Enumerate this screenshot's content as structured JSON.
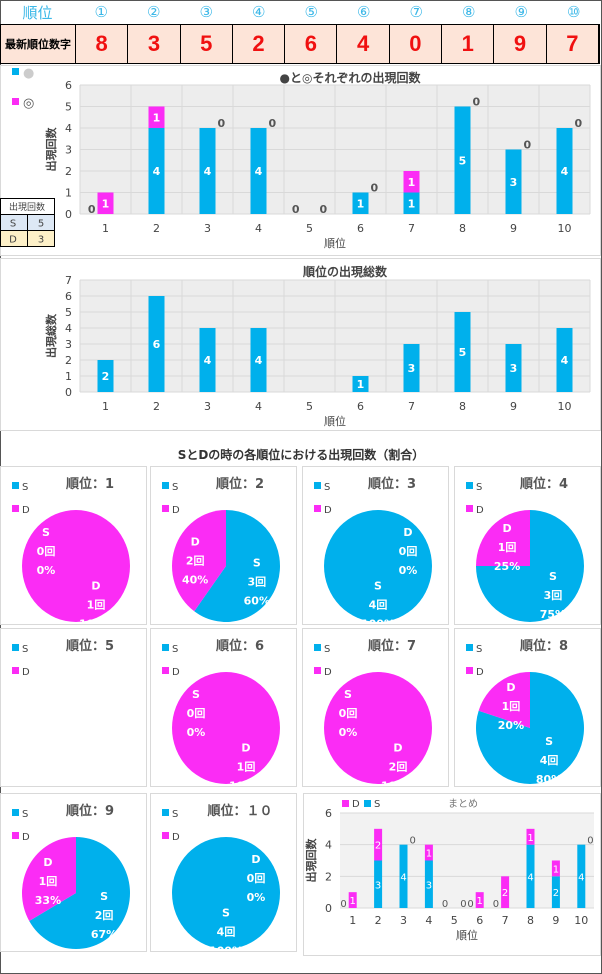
{
  "header": {
    "rank_label": "順位",
    "ranks": [
      "①",
      "②",
      "③",
      "④",
      "⑤",
      "⑥",
      "⑦",
      "⑧",
      "⑨",
      "⑩"
    ]
  },
  "latest": {
    "label": "最新順位数字",
    "digits": [
      "8",
      "3",
      "5",
      "2",
      "6",
      "4",
      "0",
      "1",
      "9",
      "7"
    ]
  },
  "colors": {
    "blue": "#00b0ec",
    "pink": "#fb2cf5",
    "header_text": "#3cb8e8",
    "digit": "#f01010",
    "table_bg": "#fde4d8"
  },
  "count_table": {
    "header": "出現回数",
    "rows": [
      {
        "k": "S",
        "v": "5"
      },
      {
        "k": "D",
        "v": "3"
      }
    ]
  },
  "pie_section_title": "SとDの時の各順位における出現回数（割合）",
  "chart_data": [
    {
      "type": "bar",
      "stacked": true,
      "title": "●と◎それぞれの出現回数",
      "xlabel": "順位",
      "ylabel": "出現回数",
      "ylim": [
        0,
        6
      ],
      "grid": true,
      "legend": "top-left",
      "categories": [
        "1",
        "2",
        "3",
        "4",
        "5",
        "6",
        "7",
        "8",
        "9",
        "10"
      ],
      "series": [
        {
          "name": "●",
          "color": "#00b0ec",
          "values": [
            0,
            4,
            4,
            4,
            0,
            1,
            1,
            5,
            3,
            4
          ]
        },
        {
          "name": "◎",
          "color": "#fb2cf5",
          "values": [
            1,
            1,
            0,
            0,
            0,
            0,
            1,
            0,
            0,
            0
          ]
        }
      ]
    },
    {
      "type": "bar",
      "title": "順位の出現総数",
      "xlabel": "順位",
      "ylabel": "出現総数",
      "ylim": [
        0,
        7
      ],
      "grid": true,
      "categories": [
        "1",
        "2",
        "3",
        "4",
        "5",
        "6",
        "7",
        "8",
        "9",
        "10"
      ],
      "series": [
        {
          "color": "#00b0ec",
          "values": [
            2,
            6,
            4,
            4,
            0,
            1,
            3,
            5,
            3,
            4
          ]
        }
      ]
    },
    {
      "type": "pie",
      "legend": "top-left",
      "labels": [
        "S",
        "D"
      ],
      "count_suffix": "回",
      "pies": [
        {
          "title": "順位：1",
          "values": [
            0,
            1
          ]
        },
        {
          "title": "順位：2",
          "values": [
            3,
            2
          ]
        },
        {
          "title": "順位：3",
          "values": [
            4,
            0
          ]
        },
        {
          "title": "順位：4",
          "values": [
            3,
            1
          ]
        },
        {
          "title": "順位：5",
          "values": [
            0,
            0
          ]
        },
        {
          "title": "順位：6",
          "values": [
            0,
            1
          ]
        },
        {
          "title": "順位：7",
          "values": [
            0,
            2
          ]
        },
        {
          "title": "順位：8",
          "values": [
            4,
            1
          ]
        },
        {
          "title": "順位：9",
          "values": [
            2,
            1
          ]
        },
        {
          "title": "順位：１０",
          "values": [
            4,
            0
          ]
        }
      ]
    },
    {
      "type": "bar",
      "stacked": true,
      "title": "まとめ",
      "xlabel": "順位",
      "ylabel": "出現回数",
      "ylim": [
        0,
        6
      ],
      "grid": true,
      "legend": "top-left",
      "categories": [
        "1",
        "2",
        "3",
        "4",
        "5",
        "6",
        "7",
        "8",
        "9",
        "10"
      ],
      "series": [
        {
          "name": "S",
          "color": "#00b0ec",
          "values": [
            0,
            3,
            4,
            3,
            0,
            0,
            0,
            4,
            2,
            4
          ]
        },
        {
          "name": "D",
          "color": "#fb2cf5",
          "values": [
            1,
            2,
            0,
            1,
            0,
            1,
            2,
            1,
            1,
            0
          ]
        }
      ],
      "legend_order": [
        "D",
        "S"
      ]
    }
  ]
}
